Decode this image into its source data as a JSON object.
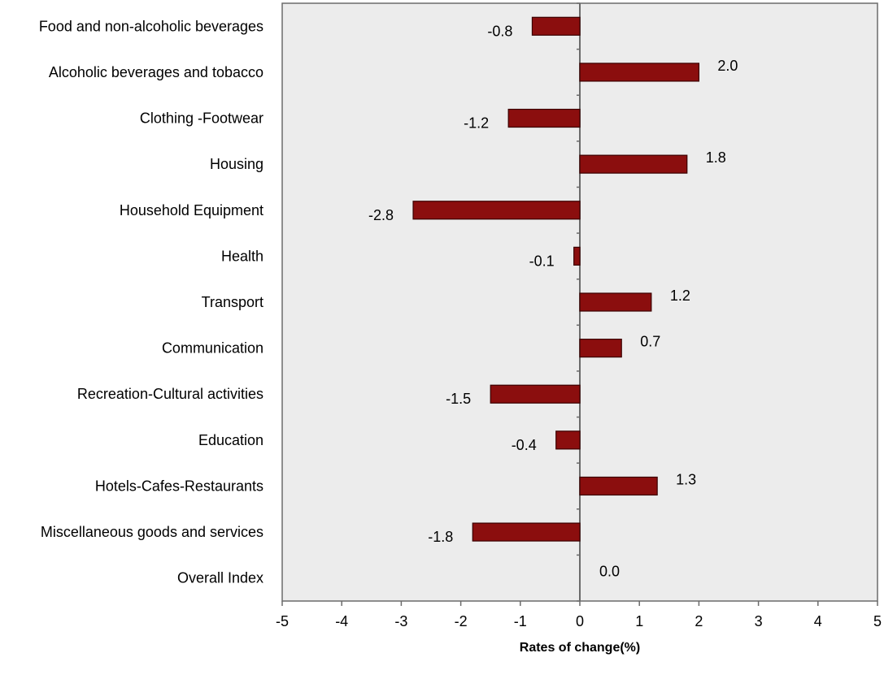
{
  "chart_data": {
    "type": "bar",
    "orientation": "horizontal",
    "categories": [
      "Food and non-alcoholic beverages",
      "Alcoholic beverages and tobacco",
      "Clothing -Footwear",
      "Housing",
      "Household Equipment",
      "Health",
      "Transport",
      "Communication",
      "Recreation-Cultural activities",
      "Education",
      "Hotels-Cafes-Restaurants",
      "Miscellaneous goods and services",
      "Overall Index"
    ],
    "values": [
      -0.8,
      2.0,
      -1.2,
      1.8,
      -2.8,
      -0.1,
      1.2,
      0.7,
      -1.5,
      -0.4,
      1.3,
      -1.8,
      0.0
    ],
    "data_labels": [
      "-0.8",
      "2.0",
      "-1.2",
      "1.8",
      "-2.8",
      "-0.1",
      "1.2",
      "0.7",
      "-1.5",
      "-0.4",
      "1.3",
      "-1.8",
      "0.0"
    ],
    "xlabel": "Rates of change(%)",
    "xlim": [
      -5,
      5
    ],
    "xticks": [
      "-5",
      "-4",
      "-3",
      "-2",
      "-1",
      "0",
      "1",
      "2",
      "3",
      "4",
      "5"
    ],
    "grid": false,
    "legend": "none",
    "colors": {
      "bar": "#8B0E0E",
      "bar_border": "#3a0000",
      "plot_background": "#ececec",
      "axis": "#6b6b6b"
    }
  }
}
